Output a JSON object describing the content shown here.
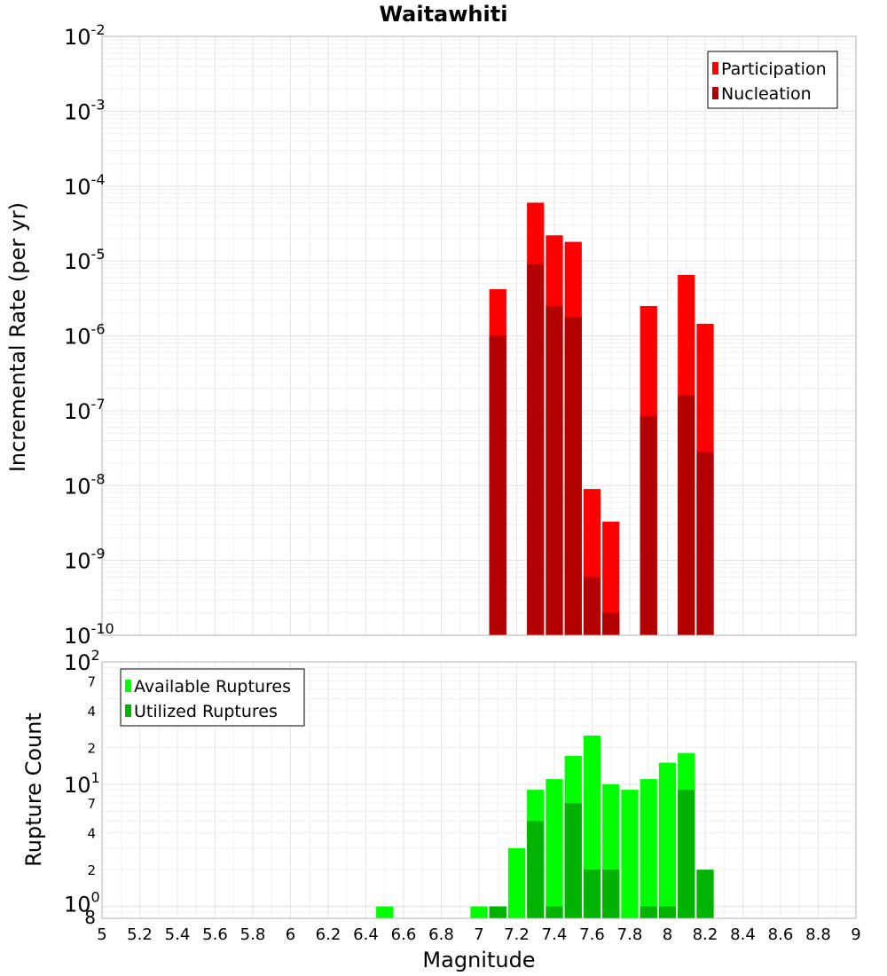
{
  "chart_data": [
    {
      "type": "bar",
      "title": "Waitawhiti",
      "xlabel": "",
      "ylabel": "Incremental Rate (per yr)",
      "yscale": "log",
      "ylim": [
        1e-10,
        0.01
      ],
      "xlim": [
        5,
        9
      ],
      "grid": true,
      "legend_position": "top-right",
      "bar_width": 0.1,
      "y_tick_labels": [
        {
          "base": "10",
          "exp": "-2"
        },
        {
          "base": "10",
          "exp": "-3"
        },
        {
          "base": "10",
          "exp": "-4"
        },
        {
          "base": "10",
          "exp": "-5"
        },
        {
          "base": "10",
          "exp": "-6"
        },
        {
          "base": "10",
          "exp": "-7"
        },
        {
          "base": "10",
          "exp": "-8"
        },
        {
          "base": "10",
          "exp": "-9"
        },
        {
          "base": "10",
          "exp": "-10"
        }
      ],
      "series": [
        {
          "name": "Participation",
          "color": "#ff0000",
          "x": [
            7.1,
            7.3,
            7.4,
            7.5,
            7.6,
            7.7,
            7.9,
            8.1,
            8.2
          ],
          "values": [
            4.2e-06,
            6e-05,
            2.2e-05,
            1.8e-05,
            9e-09,
            3.3e-09,
            2.5e-06,
            6.5e-06,
            1.45e-06
          ]
        },
        {
          "name": "Nucleation",
          "color": "#b30000",
          "x": [
            7.1,
            7.3,
            7.4,
            7.5,
            7.6,
            7.7,
            7.9,
            8.1,
            8.2
          ],
          "values": [
            1e-06,
            9e-06,
            2.5e-06,
            1.8e-06,
            6e-10,
            2e-10,
            8.5e-08,
            1.6e-07,
            2.8e-08
          ]
        }
      ]
    },
    {
      "type": "bar",
      "title": "",
      "xlabel": "Magnitude",
      "ylabel": "Rupture Count",
      "yscale": "log",
      "ylim": [
        0.8,
        100
      ],
      "xlim": [
        5,
        9
      ],
      "grid": true,
      "legend_position": "top-left",
      "bar_width": 0.1,
      "x_tick_labels": [
        "5",
        "5.2",
        "5.4",
        "5.6",
        "5.8",
        "6",
        "6.2",
        "6.4",
        "6.6",
        "6.8",
        "7",
        "7.2",
        "7.4",
        "7.6",
        "7.8",
        "8",
        "8.2",
        "8.4",
        "8.6",
        "8.8",
        "9"
      ],
      "y_tick_labels": [
        {
          "base": "10",
          "exp": "2"
        },
        {
          "base": "10",
          "exp": "1"
        },
        {
          "base": "10",
          "exp": "0"
        }
      ],
      "y_minor_tick_labels": [
        "7",
        "4",
        "2",
        "7",
        "4",
        "2",
        "8"
      ],
      "series": [
        {
          "name": "Available Ruptures",
          "color": "#00ff00",
          "x": [
            6.5,
            7.0,
            7.1,
            7.2,
            7.3,
            7.4,
            7.5,
            7.6,
            7.7,
            7.8,
            7.9,
            8.0,
            8.1
          ],
          "values": [
            1,
            1,
            1,
            3,
            9,
            11,
            17,
            25,
            10,
            9,
            11,
            15,
            18
          ]
        },
        {
          "name": "Utilized Ruptures",
          "color": "#00b300",
          "x": [
            7.1,
            7.3,
            7.4,
            7.5,
            7.6,
            7.7,
            7.9,
            8.0,
            8.1,
            8.2
          ],
          "values": [
            1,
            5,
            1,
            7,
            2,
            2,
            1,
            1,
            9,
            2
          ]
        }
      ]
    }
  ]
}
